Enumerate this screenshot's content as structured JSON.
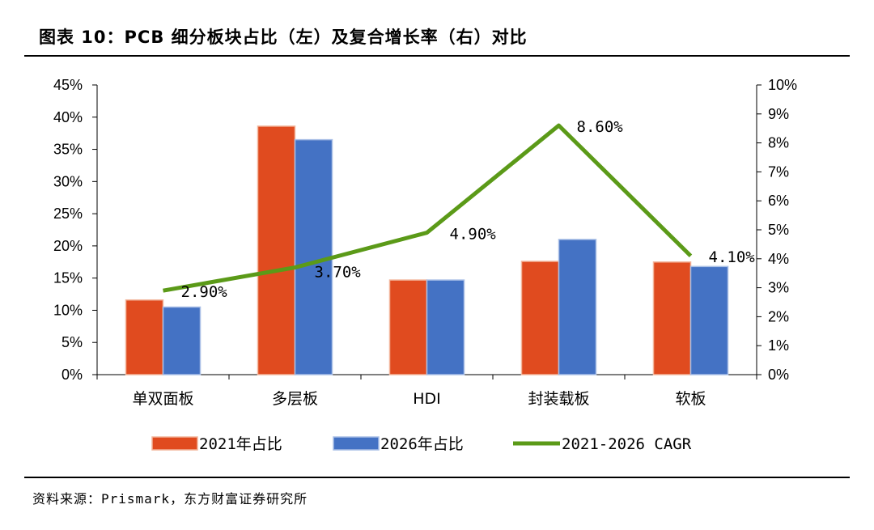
{
  "title": "图表 10：PCB 细分板块占比（左）及复合增长率（右）对比",
  "source": "资料来源：Prismark，东方财富证券研究所",
  "colors": {
    "series_2021": "#E04B1F",
    "series_2026": "#4472C4",
    "cagr": "#5B9A18"
  },
  "chart_data": {
    "type": "bar",
    "categories": [
      "单双面板",
      "多层板",
      "HDI",
      "封装载板",
      "软板"
    ],
    "series": [
      {
        "name": "2021年占比",
        "type": "bar",
        "axis": "left",
        "values": [
          11.6,
          38.6,
          14.7,
          17.6,
          17.5
        ]
      },
      {
        "name": "2026年占比",
        "type": "bar",
        "axis": "left",
        "values": [
          10.5,
          36.5,
          14.7,
          21.0,
          16.8
        ]
      },
      {
        "name": "2021-2026 CAGR",
        "type": "line",
        "axis": "right",
        "values": [
          2.9,
          3.7,
          4.9,
          8.6,
          4.1
        ],
        "labels": [
          "2.90%",
          "3.70%",
          "4.90%",
          "8.60%",
          "4.10%"
        ]
      }
    ],
    "y_left": {
      "min": 0,
      "max": 45,
      "step": 5,
      "tick_labels": [
        "0%",
        "5%",
        "10%",
        "15%",
        "20%",
        "25%",
        "30%",
        "35%",
        "40%",
        "45%"
      ]
    },
    "y_right": {
      "min": 0,
      "max": 10,
      "step": 1,
      "tick_labels": [
        "0%",
        "1%",
        "2%",
        "3%",
        "4%",
        "5%",
        "6%",
        "7%",
        "8%",
        "9%",
        "10%"
      ]
    },
    "grid": false,
    "legend": "bottom"
  }
}
